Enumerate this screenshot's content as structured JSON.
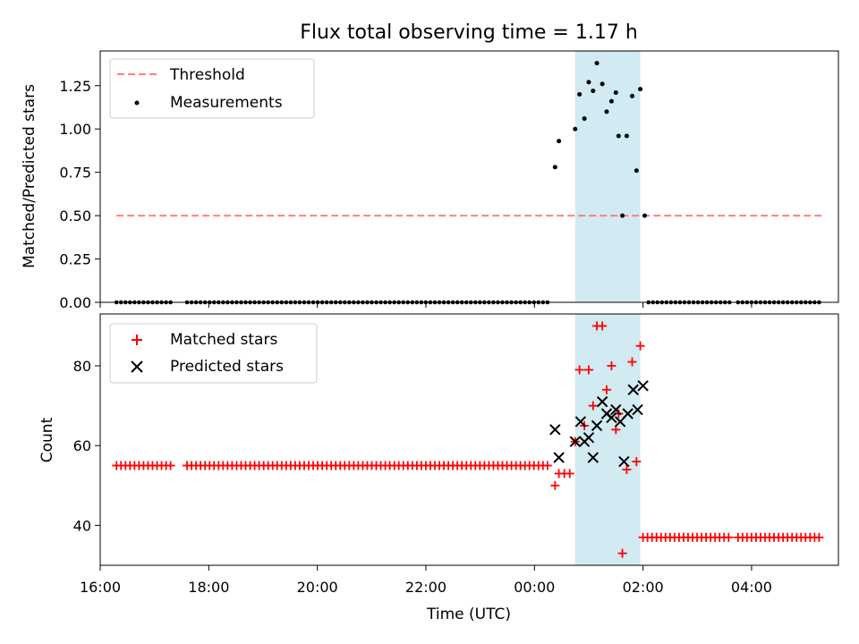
{
  "chart_data": [
    {
      "type": "scatter",
      "title": "Flux total observing time = 1.17 h",
      "ylabel": "Matched/Predicted stars",
      "xlim": [
        16.0,
        29.6
      ],
      "ylim": [
        0,
        1.45
      ],
      "yticks": [
        0.0,
        0.25,
        0.5,
        0.75,
        1.0,
        1.25
      ],
      "ytick_labels": [
        "0.00",
        "0.25",
        "0.50",
        "0.75",
        "1.00",
        "1.25"
      ],
      "highlight_span": [
        24.75,
        25.95
      ],
      "highlight_color": "#add8e6",
      "legend_position": "upper-left",
      "series": [
        {
          "name": "Threshold",
          "kind": "dashed-line",
          "color": "#ff7f7f",
          "x": [
            16.3,
            29.3
          ],
          "y": [
            0.5,
            0.5
          ]
        },
        {
          "name": "Measurements",
          "kind": "dot",
          "color": "#000000",
          "points": [
            [
              24.38,
              0.78
            ],
            [
              24.45,
              0.93
            ],
            [
              24.75,
              1.0
            ],
            [
              24.83,
              1.2
            ],
            [
              24.92,
              1.06
            ],
            [
              25.0,
              1.27
            ],
            [
              25.08,
              1.22
            ],
            [
              25.15,
              1.38
            ],
            [
              25.25,
              1.26
            ],
            [
              25.33,
              1.1
            ],
            [
              25.42,
              1.16
            ],
            [
              25.5,
              1.21
            ],
            [
              25.55,
              0.96
            ],
            [
              25.62,
              0.5
            ],
            [
              25.7,
              0.96
            ],
            [
              25.8,
              1.19
            ],
            [
              25.88,
              0.76
            ],
            [
              25.95,
              1.23
            ],
            [
              26.03,
              0.5
            ]
          ],
          "zero_runs": [
            [
              16.3,
              17.3
            ],
            [
              17.6,
              24.3
            ],
            [
              26.1,
              27.6
            ],
            [
              27.75,
              29.3
            ]
          ]
        }
      ]
    },
    {
      "type": "scatter",
      "ylabel": "Count",
      "xlabel": "Time (UTC)",
      "xlim": [
        16.0,
        29.6
      ],
      "ylim": [
        30,
        93
      ],
      "yticks": [
        40,
        60,
        80
      ],
      "ytick_labels": [
        "40",
        "60",
        "80"
      ],
      "xticks": [
        16,
        18,
        20,
        22,
        24,
        26,
        28
      ],
      "xtick_labels": [
        "16:00",
        "18:00",
        "20:00",
        "22:00",
        "00:00",
        "02:00",
        "04:00"
      ],
      "highlight_span": [
        24.75,
        25.95
      ],
      "highlight_color": "#add8e6",
      "legend_position": "upper-left",
      "series": [
        {
          "name": "Matched stars",
          "marker": "plus",
          "color": "#ff0000",
          "runs": [
            {
              "x0": 16.3,
              "x1": 17.3,
              "y": 55
            },
            {
              "x0": 17.6,
              "x1": 24.3,
              "y": 55
            },
            {
              "x0": 26.0,
              "x1": 27.6,
              "y": 37
            },
            {
              "x0": 27.75,
              "x1": 29.3,
              "y": 37
            }
          ],
          "points": [
            [
              24.38,
              50
            ],
            [
              24.45,
              53
            ],
            [
              24.55,
              53
            ],
            [
              24.65,
              53
            ],
            [
              24.75,
              61
            ],
            [
              24.83,
              79
            ],
            [
              24.92,
              65
            ],
            [
              25.0,
              79
            ],
            [
              25.08,
              70
            ],
            [
              25.15,
              90
            ],
            [
              25.25,
              90
            ],
            [
              25.33,
              74
            ],
            [
              25.42,
              80
            ],
            [
              25.5,
              64
            ],
            [
              25.55,
              68
            ],
            [
              25.62,
              33
            ],
            [
              25.7,
              54
            ],
            [
              25.8,
              81
            ],
            [
              25.88,
              56
            ],
            [
              25.95,
              85
            ]
          ]
        },
        {
          "name": "Predicted stars",
          "marker": "x",
          "color": "#000000",
          "points": [
            [
              24.38,
              64
            ],
            [
              24.45,
              57
            ],
            [
              24.75,
              61
            ],
            [
              24.85,
              66
            ],
            [
              24.92,
              61
            ],
            [
              25.0,
              62
            ],
            [
              25.08,
              57
            ],
            [
              25.15,
              65
            ],
            [
              25.25,
              71
            ],
            [
              25.33,
              68
            ],
            [
              25.42,
              67
            ],
            [
              25.5,
              69
            ],
            [
              25.58,
              66
            ],
            [
              25.65,
              56
            ],
            [
              25.72,
              68
            ],
            [
              25.82,
              74
            ],
            [
              25.9,
              69
            ],
            [
              26.0,
              75
            ]
          ]
        }
      ]
    }
  ]
}
